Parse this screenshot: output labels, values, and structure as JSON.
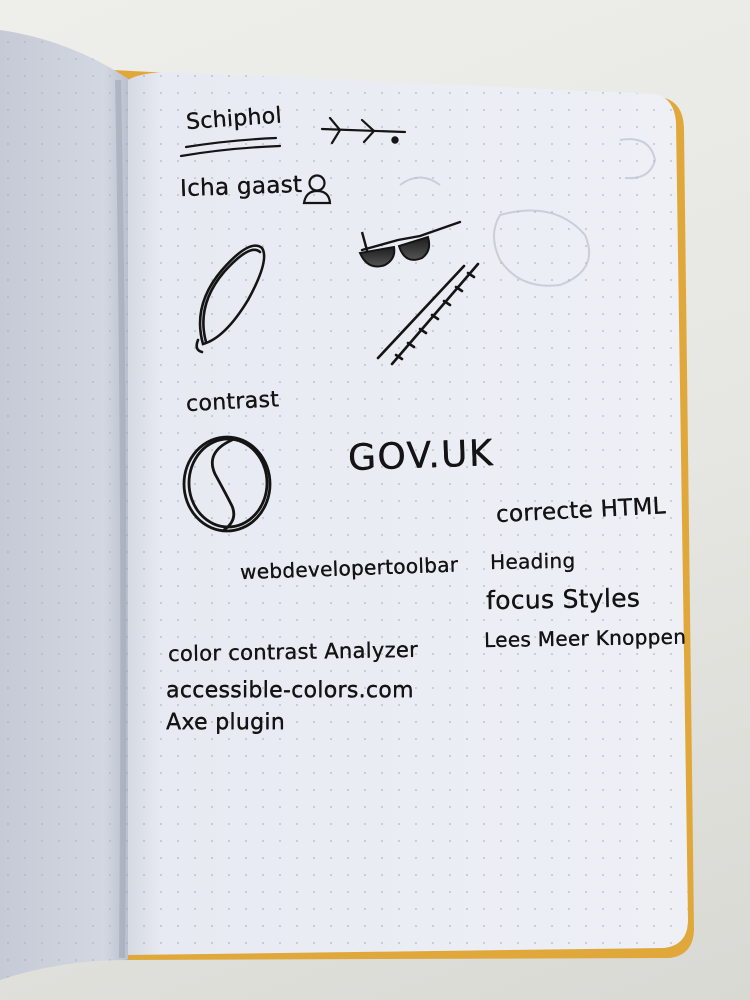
{
  "notes": {
    "title": "Schiphol",
    "ichagaast": "Icha gaast",
    "contrast": "contrast",
    "govuk": "GOV.UK",
    "correct_html": "correcte HTML",
    "webdev": "webdevelopertoolbar",
    "heading": "Heading",
    "focus_styles": "focus Styles",
    "lees_meer": "Lees Meer Knoppen",
    "color_contrast": "color contrast Analyzer",
    "accessible_colors": "accessible-colors.com",
    "axe_plugin": "Axe plugin"
  },
  "colors": {
    "background": "#e6e6e2",
    "left_page": "#d2d6e0",
    "right_page": "#e9ecf3",
    "ink": "#141414",
    "cover_edge": "#e0a83a"
  },
  "icons": [
    "arrow-sketch-icon",
    "person-sketch-icon",
    "sunglasses-sketch-icon",
    "drop-sketch-icon",
    "cane-sketch-icon",
    "contrast-circle-sketch-icon"
  ]
}
